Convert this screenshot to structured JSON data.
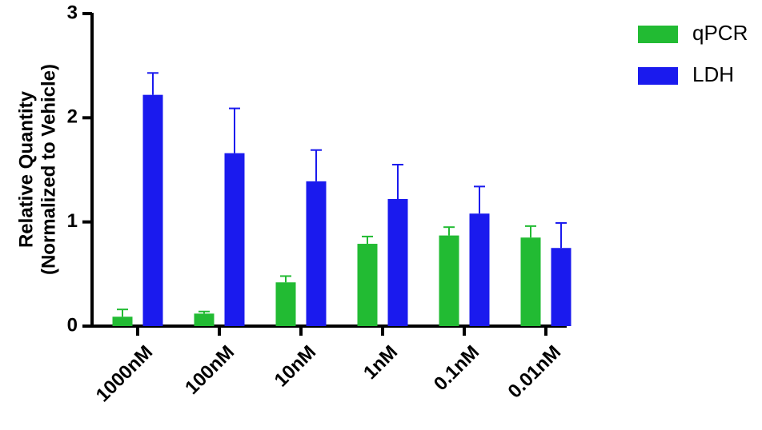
{
  "chart_data": {
    "type": "bar",
    "title": "",
    "xlabel": "",
    "ylabel": "Relative Quantity\n(Normalized to Vehicle)",
    "ylabel_lines": [
      "Relative Quantity",
      "(Normalized to Vehicle)"
    ],
    "ylim": [
      0,
      3
    ],
    "yticks": [
      0,
      1,
      2,
      3
    ],
    "categories": [
      "1000nM",
      "100nM",
      "10nM",
      "1nM",
      "0.1nM",
      "0.01nM"
    ],
    "series": [
      {
        "name": "qPCR",
        "color": "#22bb33",
        "values": [
          0.09,
          0.12,
          0.42,
          0.79,
          0.87,
          0.85
        ],
        "errors": [
          0.07,
          0.02,
          0.06,
          0.07,
          0.08,
          0.11
        ]
      },
      {
        "name": "LDH",
        "color": "#1a1aee",
        "values": [
          2.22,
          1.66,
          1.39,
          1.22,
          1.08,
          0.75
        ],
        "errors": [
          0.21,
          0.43,
          0.3,
          0.33,
          0.26,
          0.24
        ]
      }
    ],
    "grid": false,
    "legend": "top-right",
    "error_bars": "upper"
  }
}
